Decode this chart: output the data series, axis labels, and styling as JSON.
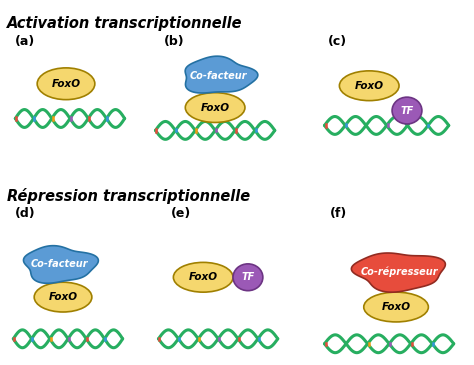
{
  "title_activation": "Activation transcriptionnelle",
  "title_repression": "Répression transcriptionnelle",
  "labels": [
    "(a)",
    "(b)",
    "(c)",
    "(d)",
    "(e)",
    "(f)"
  ],
  "foxo_color": "#F5D76E",
  "cofacteur_color": "#5B9BD5",
  "tf_color": "#9B59B6",
  "corepresseur_color": "#E74C3C",
  "background_color": "#FFFFFF",
  "dna_base_colors": [
    "#E74C3C",
    "#3498DB",
    "#F39C12",
    "#9B59B6"
  ]
}
